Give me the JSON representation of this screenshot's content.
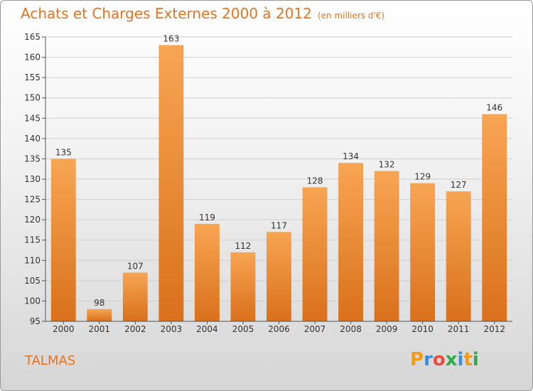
{
  "chart_data": {
    "type": "bar",
    "title": "Achats et Charges Externes 2000 à 2012",
    "subtitle": "(en milliers d'€)",
    "categories": [
      "2000",
      "2001",
      "2002",
      "2003",
      "2004",
      "2005",
      "2006",
      "2007",
      "2008",
      "2009",
      "2010",
      "2011",
      "2012"
    ],
    "values": [
      135,
      98,
      107,
      163,
      119,
      112,
      117,
      128,
      134,
      132,
      129,
      127,
      146
    ],
    "ylim": [
      95,
      165
    ],
    "yticks": [
      95,
      100,
      105,
      110,
      115,
      120,
      125,
      130,
      135,
      140,
      145,
      150,
      155,
      160,
      165
    ],
    "grid": true,
    "bar_color_top": "#f7a553",
    "bar_color_bottom": "#d9701c"
  },
  "commune": "TALMAS",
  "logo": {
    "letters": [
      "P",
      "r",
      "o",
      "x",
      "i",
      "t",
      "i"
    ],
    "colors": [
      "#f39c12",
      "#3b8ed8",
      "#e84c3d",
      "#2eaa4a",
      "#3b8ed8",
      "#f39c12",
      "#2eaa4a"
    ]
  },
  "accent_color": "#e8731e"
}
